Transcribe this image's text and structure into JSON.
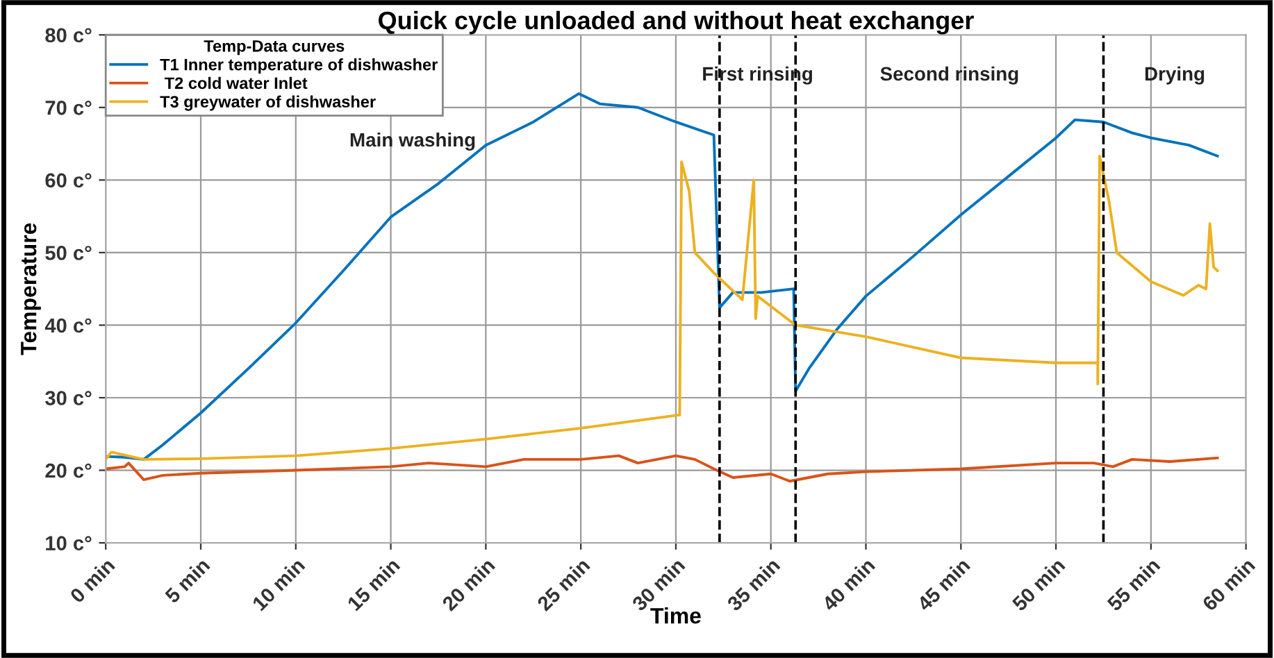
{
  "chart_data": {
    "type": "line",
    "title": "Quick cycle unloaded and without heat exchanger",
    "xlabel": "Time",
    "ylabel": "Temperature",
    "legend_title": "Temp-Data curves",
    "xlim": [
      0,
      60
    ],
    "ylim": [
      10,
      80
    ],
    "xticks": [
      {
        "value": 0,
        "label": "0 min"
      },
      {
        "value": 5,
        "label": "5 min"
      },
      {
        "value": 10,
        "label": "10 min"
      },
      {
        "value": 15,
        "label": "15 min"
      },
      {
        "value": 20,
        "label": "20 min"
      },
      {
        "value": 25,
        "label": "25 min"
      },
      {
        "value": 30,
        "label": "30 min"
      },
      {
        "value": 35,
        "label": "35 min"
      },
      {
        "value": 40,
        "label": "40 min"
      },
      {
        "value": 45,
        "label": "45 min"
      },
      {
        "value": 50,
        "label": "50 min"
      },
      {
        "value": 55,
        "label": "55 min"
      },
      {
        "value": 60,
        "label": "60 min"
      }
    ],
    "yticks": [
      {
        "value": 10,
        "label": "10 c°"
      },
      {
        "value": 20,
        "label": "20 c°"
      },
      {
        "value": 30,
        "label": "30 c°"
      },
      {
        "value": 40,
        "label": "40 c°"
      },
      {
        "value": 50,
        "label": "50 c°"
      },
      {
        "value": 60,
        "label": "60 c°"
      },
      {
        "value": 70,
        "label": "70 c°"
      },
      {
        "value": 80,
        "label": "80 c°"
      }
    ],
    "grid": true,
    "legend": "top left",
    "marker": "none",
    "line_style": "solid",
    "series": [
      {
        "name": "T1 Inner temperature of dishwasher",
        "color": "#0072bd",
        "x": [
          0,
          1,
          2,
          3,
          5,
          7.5,
          10,
          12.5,
          15,
          17.5,
          20,
          22.5,
          24.9,
          26,
          28,
          30,
          32,
          32.3,
          33,
          34.5,
          36.2,
          36.3,
          37,
          38.5,
          40,
          42.5,
          45,
          47.5,
          50,
          51,
          52.5,
          54,
          55,
          57,
          58.5
        ],
        "values": [
          21.9,
          21.8,
          21.5,
          23.5,
          27.9,
          34,
          40.3,
          47.5,
          54.9,
          59.5,
          64.8,
          68,
          71.9,
          70.5,
          70,
          68,
          66.2,
          42.4,
          44.5,
          44.5,
          45,
          30.9,
          34,
          39.5,
          44,
          49.5,
          55.2,
          60.5,
          65.8,
          68.3,
          68,
          66.5,
          65.8,
          64.8,
          63.3
        ]
      },
      {
        "name": " T2 cold water Inlet",
        "color": "#d95319",
        "x": [
          0,
          1,
          1.2,
          2,
          3,
          5,
          10,
          15,
          17,
          20,
          22,
          25,
          27,
          28,
          30,
          31,
          32,
          33,
          35,
          36,
          38,
          40,
          45,
          50,
          52,
          53,
          54,
          56,
          58.5
        ],
        "values": [
          20.2,
          20.5,
          21,
          18.7,
          19.3,
          19.6,
          20,
          20.5,
          21,
          20.5,
          21.5,
          21.5,
          22,
          21,
          22,
          21.5,
          20.2,
          19,
          19.5,
          18.5,
          19.5,
          19.8,
          20.2,
          21,
          21,
          20.5,
          21.5,
          21.2,
          21.7
        ]
      },
      {
        "name": "T3 greywater of dishwasher",
        "color": "#edb120",
        "x": [
          0,
          0.3,
          2,
          5,
          10,
          15,
          20,
          25,
          30.1,
          30.2,
          30.3,
          30.7,
          31,
          32,
          33.5,
          34.1,
          34.2,
          34.3,
          36.3,
          40,
          45,
          50,
          52.2,
          52.2,
          52.3,
          52.8,
          53.2,
          55,
          56.7,
          57.5,
          57.9,
          58.1,
          58.3,
          58.5
        ],
        "values": [
          21.5,
          22.5,
          21.5,
          21.6,
          22,
          23,
          24.3,
          25.8,
          27.6,
          27.6,
          62.5,
          58.5,
          50,
          47.2,
          43.5,
          60,
          40.9,
          44,
          40,
          38.4,
          35.5,
          34.8,
          34.8,
          31.9,
          63.3,
          57,
          50,
          46,
          44.1,
          45.5,
          45,
          54,
          48,
          47.5
        ]
      }
    ],
    "ref_lines": [
      {
        "axis": "x",
        "value": 32.3,
        "color": "#000000",
        "line_style": "dashed"
      },
      {
        "axis": "x",
        "value": 36.3,
        "color": "#000000",
        "line_style": "dashed"
      },
      {
        "axis": "x",
        "value": 52.5,
        "color": "#000000",
        "line_style": "dashed"
      }
    ],
    "annotations": [
      "Main washing",
      "First rinsing",
      "Second rinsing",
      "Drying"
    ]
  }
}
